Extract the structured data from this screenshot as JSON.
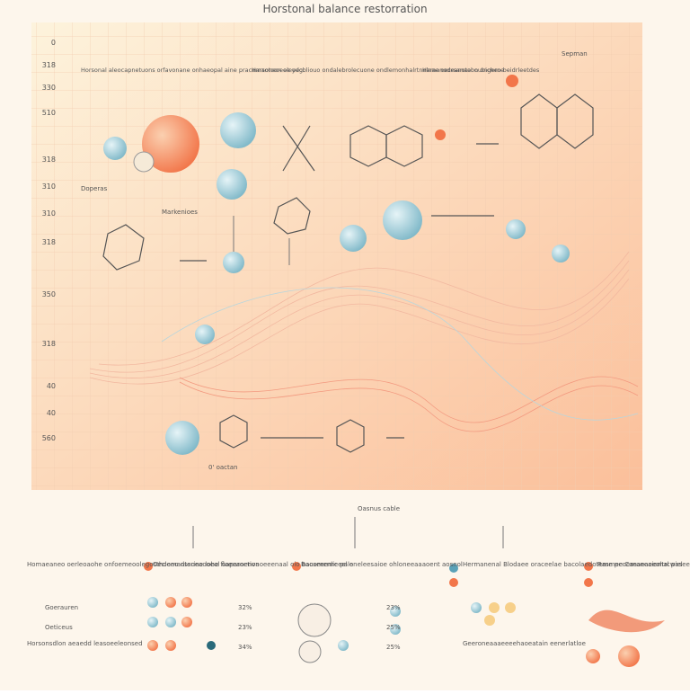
{
  "header": {
    "title": "Horstonal balance restorration"
  },
  "axis": {
    "labels": [
      "0",
      "318",
      "330",
      "510",
      "318",
      "310",
      "310",
      "318",
      "350",
      "318",
      "40",
      "40",
      "560"
    ]
  },
  "annotations": [
    "Horsonal aleocapnetuons orfavonane onhaeopal aine pracemaotoon eleydg.",
    "Harsoneoeoe oecbliouo ondalebrolecuone ondlemonhalrtnelnae oecrsanaoon ongerne",
    "Hamanodeanotal oubicheo beidrleetdes",
    "Sepman",
    "Doperas",
    "Markenioes",
    "0' oactan",
    "Oasnus cable"
  ],
  "panels": [
    {
      "text": "Homaeaneo oerleoaohe onfoemeoolegosthoeeo dssoeaooeal oaparoetion",
      "items": [
        "Goerauren",
        "Oeticeus"
      ],
      "note": "Horsonsdlon aeaedd leasoeeleonsed"
    },
    {
      "text": "Oeclomanterine lobe flaeeanenvaoeeenaal oio bacemenlic pale",
      "items": [
        "32%",
        "23%",
        "34%"
      ]
    },
    {
      "text": "Baoseeemeeel oneleesaioe ohloneeaaaoent aosnol",
      "items": [
        "23%",
        "25%",
        "25%"
      ]
    },
    {
      "text": "Hermanenal Blodaee oraceelae bacolaedoteme peoemaneaiomal pasee",
      "note": "Geeroneaaaeeeehaoeatain eenerlatloe"
    },
    {
      "text": "Rasmee Caeaeaeeoltrcwiel"
    }
  ]
}
